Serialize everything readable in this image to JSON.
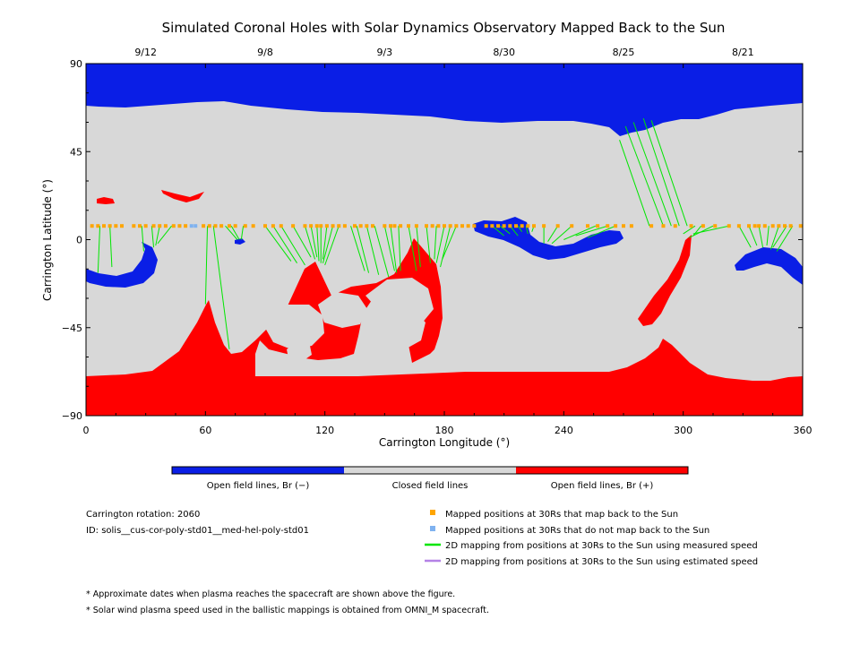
{
  "title": "Simulated Coronal Holes with Solar Dynamics Observatory Mapped Back to the Sun",
  "colors": {
    "open_negative": "#0a1ee6",
    "closed": "#d8d8d8",
    "open_positive": "#ff0000",
    "mapped_point": "#ffa500",
    "unmapped_point": "#7fb2f0",
    "measured_speed_line": "#00e600",
    "estimated_speed_line": "#b482e6"
  },
  "chart_data": {
    "type": "map",
    "xlabel": "Carrington Longitude (°)",
    "ylabel": "Carrington Latitude (°)",
    "xlim": [
      0,
      360
    ],
    "ylim": [
      -90,
      90
    ],
    "x_ticks": [
      "0",
      "60",
      "120",
      "180",
      "240",
      "300",
      "360"
    ],
    "y_ticks": [
      "90",
      "45",
      "0",
      "−45",
      "−90"
    ],
    "top_axis_dates": [
      {
        "date": "9/12",
        "lon": 30
      },
      {
        "date": "9/8",
        "lon": 90
      },
      {
        "date": "9/3",
        "lon": 150
      },
      {
        "date": "8/30",
        "lon": 210
      },
      {
        "date": "8/25",
        "lon": 270
      },
      {
        "date": "8/21",
        "lon": 330
      }
    ],
    "mapped_track_latitude": 7,
    "mapped_points_lon": [
      3,
      6,
      9,
      12,
      15,
      18,
      24,
      27,
      30,
      34,
      37,
      40,
      44,
      47,
      50,
      59,
      62,
      65,
      68,
      72,
      75,
      80,
      84,
      90,
      94,
      98,
      104,
      110,
      113,
      116,
      118,
      121,
      124,
      127,
      130,
      135,
      138,
      141,
      144,
      150,
      153,
      155,
      158,
      162,
      166,
      171,
      174,
      177,
      180,
      183,
      186,
      189,
      192,
      195,
      201,
      204,
      207,
      210,
      213,
      216,
      219,
      222,
      225,
      230,
      237,
      244,
      252,
      257,
      262,
      266,
      270,
      274,
      284,
      290,
      296,
      304,
      310,
      316,
      323,
      328,
      333,
      336,
      338,
      341,
      345,
      348,
      351,
      354,
      359
    ],
    "unmapped_points_lon": [
      53,
      55
    ],
    "mapping_lines": [
      {
        "from_lon": 7,
        "to": [
          6,
          -17
        ]
      },
      {
        "from_lon": 12,
        "to": [
          13,
          -14
        ]
      },
      {
        "from_lon": 28,
        "to": [
          29,
          -6
        ]
      },
      {
        "from_lon": 33,
        "to": [
          34,
          -4
        ]
      },
      {
        "from_lon": 37,
        "to": [
          35,
          -3
        ]
      },
      {
        "from_lon": 43,
        "to": [
          36,
          -2
        ]
      },
      {
        "from_lon": 61,
        "to": [
          60,
          -33
        ]
      },
      {
        "from_lon": 64,
        "to": [
          72,
          -56
        ]
      },
      {
        "from_lon": 70,
        "to": [
          76,
          0
        ]
      },
      {
        "from_lon": 73,
        "to": [
          77,
          0
        ]
      },
      {
        "from_lon": 79,
        "to": [
          78,
          0
        ]
      },
      {
        "from_lon": 90,
        "to": [
          103,
          -11
        ]
      },
      {
        "from_lon": 94,
        "to": [
          106,
          -12
        ]
      },
      {
        "from_lon": 98,
        "to": [
          110,
          -13
        ]
      },
      {
        "from_lon": 104,
        "to": [
          113,
          -9
        ]
      },
      {
        "from_lon": 110,
        "to": [
          115,
          -10
        ]
      },
      {
        "from_lon": 113,
        "to": [
          116,
          -9
        ]
      },
      {
        "from_lon": 116,
        "to": [
          117,
          -11
        ]
      },
      {
        "from_lon": 118,
        "to": [
          118,
          -12
        ]
      },
      {
        "from_lon": 121,
        "to": [
          119,
          -10
        ]
      },
      {
        "from_lon": 124,
        "to": [
          119,
          -12
        ]
      },
      {
        "from_lon": 127,
        "to": [
          120,
          -13
        ]
      },
      {
        "from_lon": 133,
        "to": [
          140,
          -16
        ]
      },
      {
        "from_lon": 136,
        "to": [
          142,
          -17
        ]
      },
      {
        "from_lon": 141,
        "to": [
          147,
          -18
        ]
      },
      {
        "from_lon": 145,
        "to": [
          152,
          -19
        ]
      },
      {
        "from_lon": 150,
        "to": [
          155,
          -16
        ]
      },
      {
        "from_lon": 153,
        "to": [
          156,
          -17
        ]
      },
      {
        "from_lon": 157,
        "to": [
          158,
          -16
        ]
      },
      {
        "from_lon": 162,
        "to": [
          166,
          -16
        ]
      },
      {
        "from_lon": 166,
        "to": [
          168,
          -14
        ]
      },
      {
        "from_lon": 171,
        "to": [
          173,
          -12
        ]
      },
      {
        "from_lon": 176,
        "to": [
          175,
          -10
        ]
      },
      {
        "from_lon": 180,
        "to": [
          176,
          -12
        ]
      },
      {
        "from_lon": 183,
        "to": [
          178,
          -14
        ]
      },
      {
        "from_lon": 186,
        "to": [
          179,
          -10
        ]
      },
      {
        "from_lon": 204,
        "to": [
          210,
          2
        ]
      },
      {
        "from_lon": 208,
        "to": [
          213,
          3
        ]
      },
      {
        "from_lon": 213,
        "to": [
          217,
          2
        ]
      },
      {
        "from_lon": 217,
        "to": [
          219,
          4
        ]
      },
      {
        "from_lon": 221,
        "to": [
          222,
          3
        ]
      },
      {
        "from_lon": 225,
        "to": [
          224,
          4
        ]
      },
      {
        "from_lon": 230,
        "to": [
          230,
          -2
        ]
      },
      {
        "from_lon": 237,
        "to": [
          232,
          -1
        ]
      },
      {
        "from_lon": 244,
        "to": [
          234,
          -2
        ]
      },
      {
        "from_lon": 256,
        "to": [
          240,
          0
        ]
      },
      {
        "from_lon": 262,
        "to": [
          246,
          2
        ]
      },
      {
        "from_lon": 266,
        "to": [
          252,
          1
        ]
      },
      {
        "from_lon": 283,
        "to": [
          268,
          51
        ]
      },
      {
        "from_lon": 290,
        "to": [
          271,
          58
        ]
      },
      {
        "from_lon": 294,
        "to": [
          275,
          60
        ]
      },
      {
        "from_lon": 298,
        "to": [
          280,
          62
        ]
      },
      {
        "from_lon": 302,
        "to": [
          284,
          61
        ]
      },
      {
        "from_lon": 306,
        "to": [
          300,
          3
        ]
      },
      {
        "from_lon": 309,
        "to": [
          305,
          2
        ]
      },
      {
        "from_lon": 315,
        "to": [
          303,
          1
        ]
      },
      {
        "from_lon": 323,
        "to": [
          305,
          3
        ]
      },
      {
        "from_lon": 328,
        "to": [
          334,
          -4
        ]
      },
      {
        "from_lon": 333,
        "to": [
          337,
          -3
        ]
      },
      {
        "from_lon": 338,
        "to": [
          340,
          -4
        ]
      },
      {
        "from_lon": 343,
        "to": [
          342,
          -3
        ]
      },
      {
        "from_lon": 348,
        "to": [
          344,
          -5
        ]
      },
      {
        "from_lon": 352,
        "to": [
          345,
          -4
        ]
      },
      {
        "from_lon": 355,
        "to": [
          347,
          -6
        ]
      }
    ]
  },
  "colorbar": {
    "labels": [
      "Open field lines, Br (−)",
      "Closed field lines",
      "Open field lines, Br (+)"
    ]
  },
  "info": {
    "rotation": "Carrington rotation: 2060",
    "id": "ID: solis__cus-cor-poly-std01__med-hel-poly-std01"
  },
  "legend": [
    {
      "marker": "square",
      "color": "mapped_point",
      "text": "Mapped positions at 30Rs that map back to the Sun"
    },
    {
      "marker": "square",
      "color": "unmapped_point",
      "text": "Mapped positions at 30Rs that do not map back to the Sun"
    },
    {
      "marker": "line",
      "color": "measured_speed_line",
      "text": "2D mapping from positions at 30Rs to the Sun using measured speed"
    },
    {
      "marker": "line",
      "color": "estimated_speed_line",
      "text": "2D mapping from positions at 30Rs to the Sun using estimated speed"
    }
  ],
  "footnotes": [
    "* Approximate dates when plasma reaches the spacecraft are shown above the figure.",
    "* Solar wind plasma speed used in the ballistic mappings is obtained from OMNI_M spacecraft."
  ]
}
